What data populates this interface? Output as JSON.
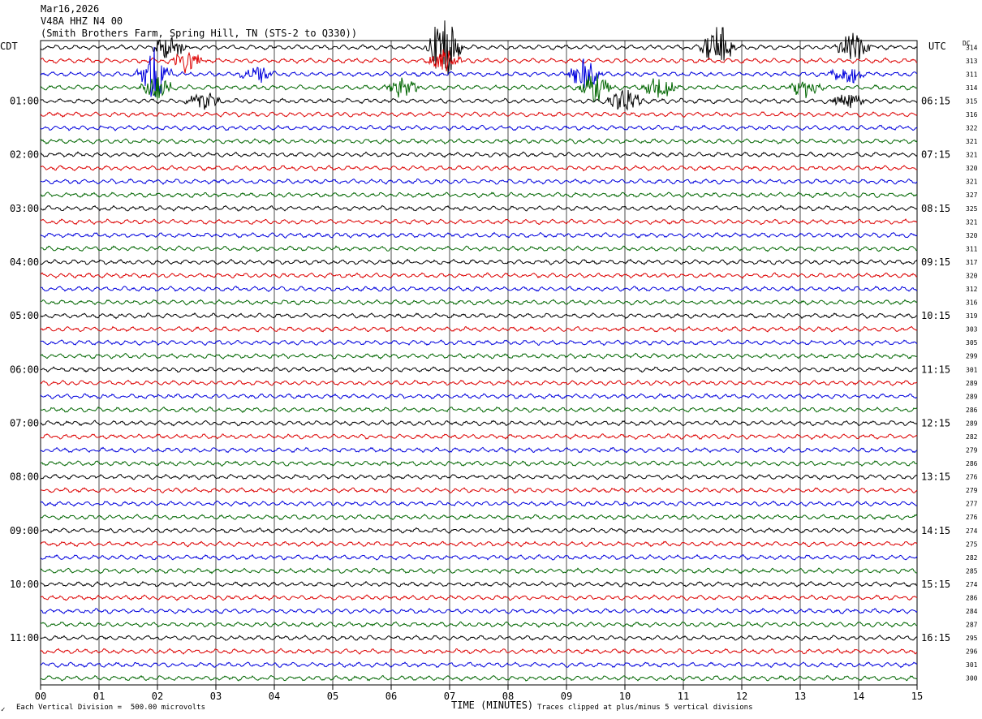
{
  "header": {
    "date": "Mar16,2026",
    "station": "V48A HHZ N4 00",
    "location": "(Smith Brothers Farm, Spring Hill, TN (STS-2 to Q330))"
  },
  "left_tz": "CDT",
  "right_tz": "UTC",
  "dc_label": "DC",
  "footer": {
    "left": "Each Vertical Division =  500.00 microvolts",
    "xlabel": "TIME (MINUTES)",
    "right": "Traces clipped at plus/minus 5 vertical divisions"
  },
  "colors": {
    "cycle": [
      "#000000",
      "#dd0000",
      "#0000dd",
      "#006600"
    ],
    "grid": "#000000"
  },
  "chart_data": {
    "type": "line",
    "title": "V48A HHZ N4 00",
    "xlabel": "TIME (MINUTES)",
    "xlim": [
      0,
      15
    ],
    "x_ticks": [
      "00",
      "01",
      "02",
      "03",
      "04",
      "05",
      "06",
      "07",
      "08",
      "09",
      "10",
      "11",
      "12",
      "13",
      "14",
      "15"
    ],
    "row_count": 48,
    "left_hour_labels": [
      "01:00",
      "02:00",
      "03:00",
      "04:00",
      "05:00",
      "06:00",
      "07:00",
      "08:00",
      "09:00",
      "10:00",
      "11:00"
    ],
    "right_hour_labels": [
      "06:15",
      "07:15",
      "08:15",
      "09:15",
      "10:15",
      "11:15",
      "12:15",
      "13:15",
      "14:15",
      "15:15",
      "16:15"
    ],
    "dc_values": [
      "314",
      "313",
      "311",
      "314",
      "315",
      "316",
      "322",
      "321",
      "321",
      "320",
      "321",
      "327",
      "325",
      "321",
      "320",
      "311",
      "317",
      "320",
      "312",
      "316",
      "319",
      "303",
      "305",
      "299",
      "301",
      "289",
      "289",
      "286",
      "289",
      "282",
      "279",
      "286",
      "276",
      "279",
      "277",
      "276",
      "274",
      "275",
      "282",
      "285",
      "274",
      "286",
      "284",
      "287",
      "295",
      "296",
      "301",
      "300"
    ],
    "events": [
      {
        "row": 0,
        "minute": 2.2,
        "amp": 1.8
      },
      {
        "row": 0,
        "minute": 6.9,
        "amp": 4.5
      },
      {
        "row": 0,
        "minute": 11.6,
        "amp": 3.0
      },
      {
        "row": 0,
        "minute": 13.9,
        "amp": 2.0
      },
      {
        "row": 1,
        "minute": 2.5,
        "amp": 1.5
      },
      {
        "row": 1,
        "minute": 6.9,
        "amp": 1.5
      },
      {
        "row": 2,
        "minute": 1.95,
        "amp": 3.5
      },
      {
        "row": 2,
        "minute": 3.7,
        "amp": 1.2
      },
      {
        "row": 2,
        "minute": 9.3,
        "amp": 2.0
      },
      {
        "row": 2,
        "minute": 13.8,
        "amp": 1.5
      },
      {
        "row": 3,
        "minute": 2.0,
        "amp": 1.5
      },
      {
        "row": 3,
        "minute": 6.2,
        "amp": 1.2
      },
      {
        "row": 3,
        "minute": 9.5,
        "amp": 2.0
      },
      {
        "row": 3,
        "minute": 10.6,
        "amp": 1.5
      },
      {
        "row": 3,
        "minute": 13.1,
        "amp": 1.3
      },
      {
        "row": 4,
        "minute": 2.8,
        "amp": 1.2
      },
      {
        "row": 4,
        "minute": 10.0,
        "amp": 2.0
      },
      {
        "row": 4,
        "minute": 13.8,
        "amp": 1.2
      }
    ]
  }
}
